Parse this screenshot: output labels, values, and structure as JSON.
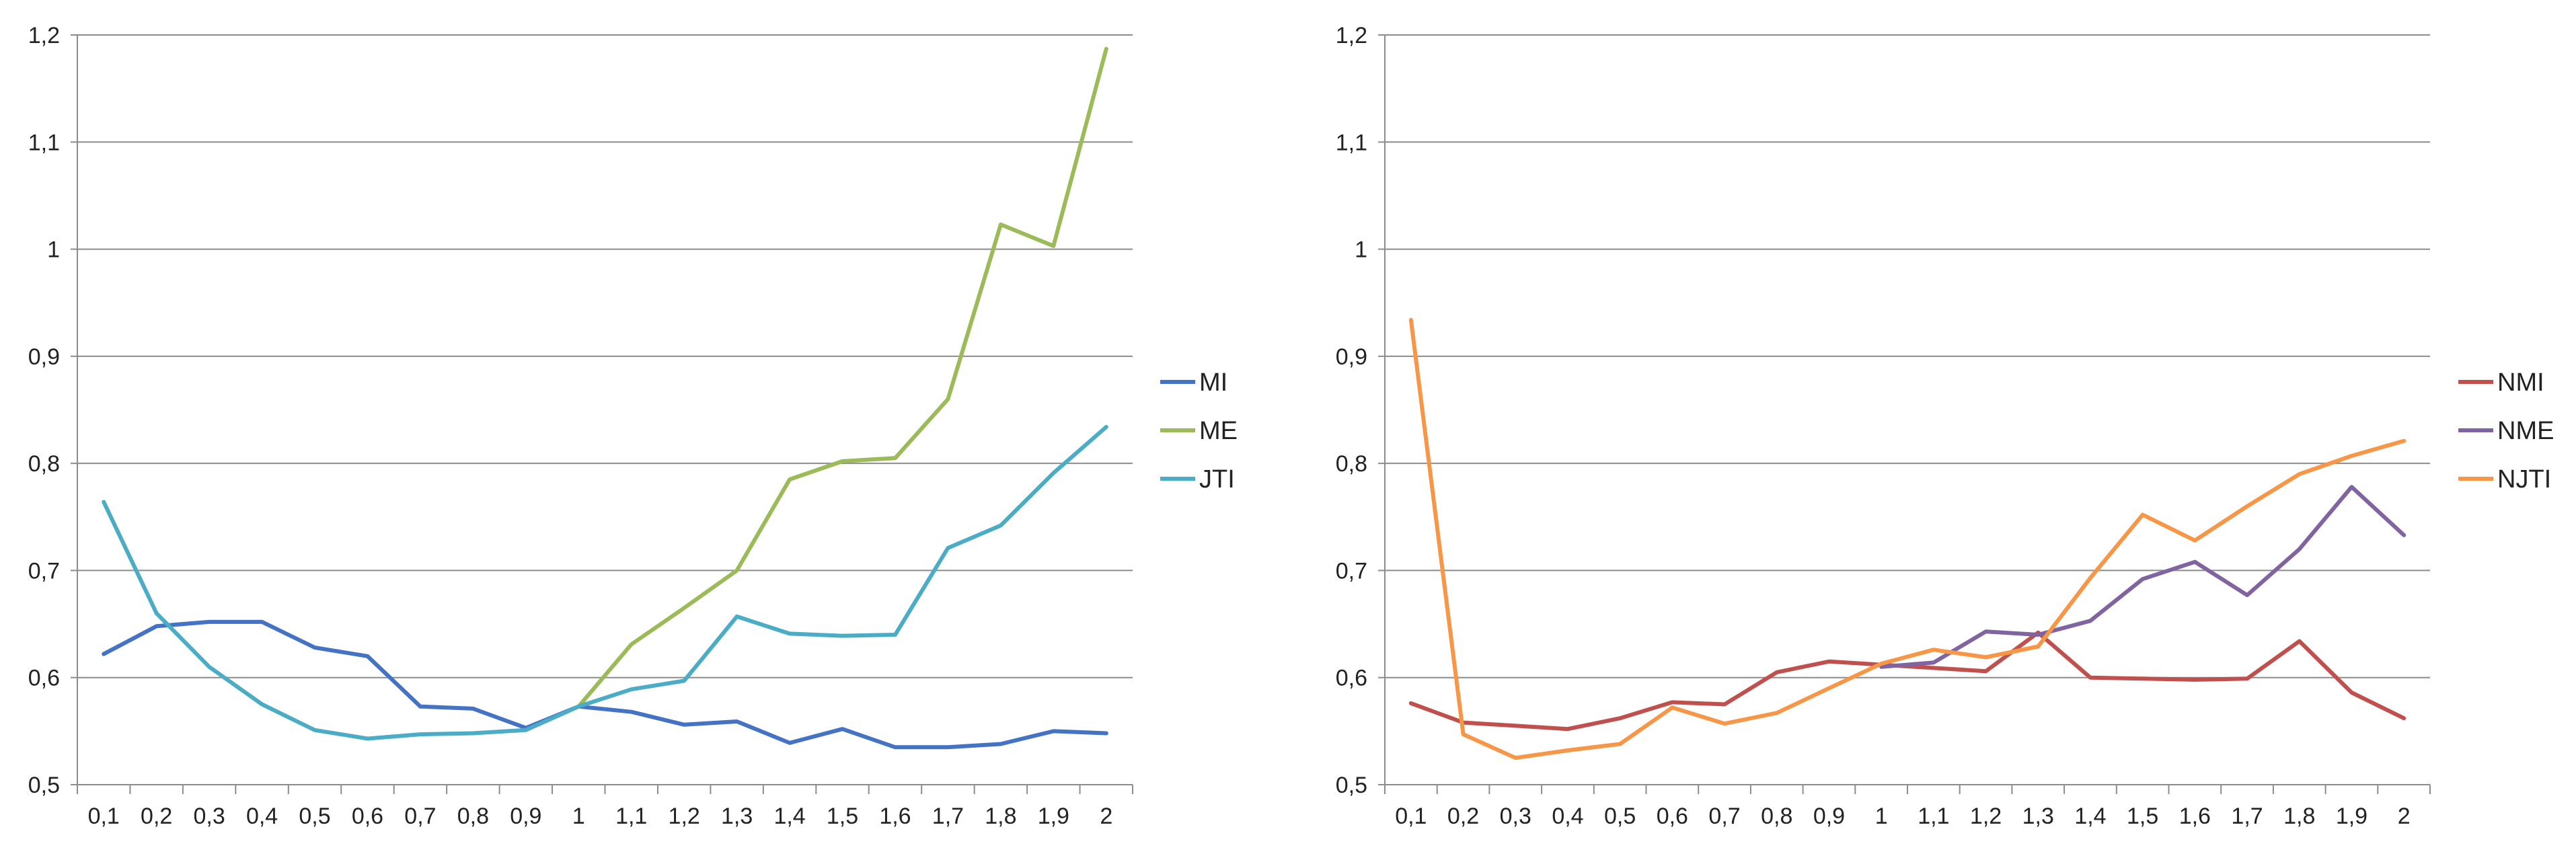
{
  "charts": [
    {
      "type": "line",
      "x": [
        "0,1",
        "0,2",
        "0,3",
        "0,4",
        "0,5",
        "0,6",
        "0,7",
        "0,8",
        "0,9",
        "1",
        "1,1",
        "1,2",
        "1,3",
        "1,4",
        "1,5",
        "1,6",
        "1,7",
        "1,8",
        "1,9",
        "2"
      ],
      "yticks": [
        "0,5",
        "0,6",
        "0,7",
        "0,8",
        "0,9",
        "1",
        "1,1",
        "1,2"
      ],
      "ylim": [
        0.5,
        1.2
      ],
      "grid": true,
      "legend_position": "right",
      "series": [
        {
          "name": "MI",
          "color": "#4472C4",
          "values": [
            0.622,
            0.648,
            0.652,
            0.652,
            0.628,
            0.62,
            0.573,
            0.571,
            0.553,
            0.573,
            0.568,
            0.556,
            0.559,
            0.539,
            0.552,
            0.535,
            0.535,
            0.538,
            0.55,
            0.548
          ]
        },
        {
          "name": "ME",
          "color": "#9BBB59",
          "values": [
            null,
            null,
            null,
            null,
            null,
            null,
            null,
            null,
            null,
            0.573,
            0.631,
            0.665,
            0.7,
            0.785,
            0.802,
            0.805,
            0.86,
            1.023,
            1.003,
            1.187
          ]
        },
        {
          "name": "JTI",
          "color": "#4BACC6",
          "values": [
            0.764,
            0.66,
            0.61,
            0.575,
            0.551,
            0.543,
            0.547,
            0.548,
            0.551,
            0.573,
            0.589,
            0.597,
            0.657,
            0.641,
            0.639,
            0.64,
            0.721,
            0.742,
            0.791,
            0.834
          ]
        }
      ]
    },
    {
      "type": "line",
      "x": [
        "0,1",
        "0,2",
        "0,3",
        "0,4",
        "0,5",
        "0,6",
        "0,7",
        "0,8",
        "0,9",
        "1",
        "1,1",
        "1,2",
        "1,3",
        "1,4",
        "1,5",
        "1,6",
        "1,7",
        "1,8",
        "1,9",
        "2"
      ],
      "yticks": [
        "0,5",
        "0,6",
        "0,7",
        "0,8",
        "0,9",
        "1",
        "1,1",
        "1,2"
      ],
      "ylim": [
        0.5,
        1.2
      ],
      "grid": true,
      "legend_position": "right",
      "series": [
        {
          "name": "NMI",
          "color": "#C0504D",
          "values": [
            0.576,
            0.558,
            0.555,
            0.552,
            0.562,
            0.577,
            0.575,
            0.605,
            0.615,
            0.612,
            0.609,
            0.606,
            0.642,
            0.6,
            0.599,
            0.598,
            0.599,
            0.634,
            0.586,
            0.562
          ]
        },
        {
          "name": "NME",
          "color": "#8064A2",
          "values": [
            null,
            null,
            null,
            null,
            null,
            null,
            null,
            null,
            null,
            0.61,
            0.614,
            0.643,
            0.64,
            0.653,
            0.692,
            0.708,
            0.677,
            0.72,
            0.778,
            0.733
          ]
        },
        {
          "name": "NJTI",
          "color": "#F79646",
          "values": [
            0.934,
            0.547,
            0.525,
            0.532,
            0.538,
            0.572,
            0.557,
            0.567,
            0.59,
            0.613,
            0.626,
            0.619,
            0.629,
            0.693,
            0.752,
            0.728,
            0.76,
            0.79,
            0.807,
            0.821
          ]
        }
      ]
    }
  ]
}
